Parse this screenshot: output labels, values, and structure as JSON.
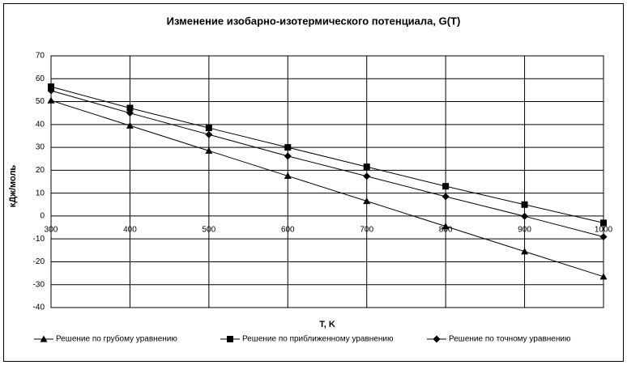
{
  "chart_data": {
    "type": "line",
    "title": "Изменение изобарно-изотермического потенциала, G(T)",
    "x_label": "T, K",
    "y_label": "кДж/моль",
    "x": [
      300,
      400,
      500,
      600,
      700,
      800,
      900,
      1000
    ],
    "xlim": [
      300,
      1000
    ],
    "xticks": [
      300,
      400,
      500,
      600,
      700,
      800,
      900,
      1000
    ],
    "ylim": [
      -40,
      70
    ],
    "yticks": [
      -40,
      -30,
      -20,
      -10,
      0,
      10,
      20,
      30,
      40,
      50,
      60,
      70
    ],
    "grid": true,
    "legend": "bottom",
    "series": [
      {
        "name": "Решение по грубому уравнению",
        "color": "#000000",
        "marker": "triangle",
        "values": [
          50.5,
          39.5,
          28.5,
          17.5,
          6.5,
          -4.5,
          -15.5,
          -26.5
        ]
      },
      {
        "name": "Решение по приближенному уравнению",
        "color": "#000000",
        "marker": "square",
        "values": [
          56.5,
          47.2,
          38.5,
          30,
          21.5,
          13,
          5,
          -3
        ]
      },
      {
        "name": "Решение по точному уравнению",
        "color": "#000000",
        "marker": "diamond",
        "values": [
          54.8,
          45,
          35.6,
          26.2,
          17.4,
          8.5,
          -0.1,
          -9.1
        ]
      }
    ]
  }
}
